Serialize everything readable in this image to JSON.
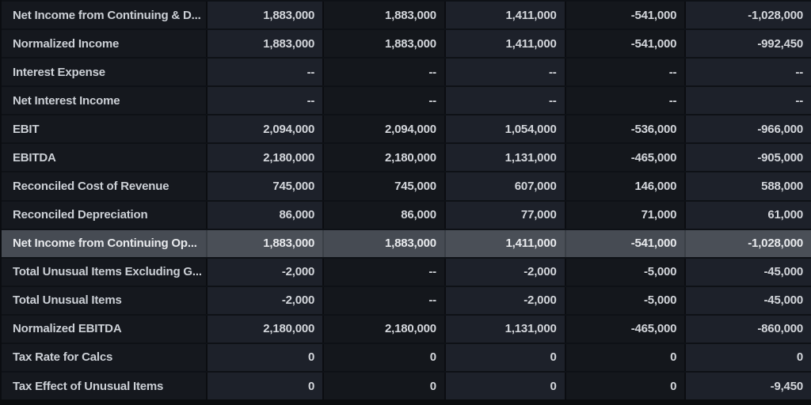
{
  "colors": {
    "row_highlight": "#4a4f57",
    "row_highlight_dark": "#464b53",
    "grid_line": "#0b0d11",
    "text": "#d3d6db"
  },
  "table": {
    "missing_value_symbol": "--",
    "rows": [
      {
        "label": "Net Income from Continuing & D...",
        "values": [
          "1,883,000",
          "1,883,000",
          "1,411,000",
          "-541,000",
          "-1,028,000"
        ],
        "highlighted": false
      },
      {
        "label": "Normalized Income",
        "values": [
          "1,883,000",
          "1,883,000",
          "1,411,000",
          "-541,000",
          "-992,450"
        ],
        "highlighted": false
      },
      {
        "label": "Interest Expense",
        "values": [
          "--",
          "--",
          "--",
          "--",
          "--"
        ],
        "highlighted": false
      },
      {
        "label": "Net Interest Income",
        "values": [
          "--",
          "--",
          "--",
          "--",
          "--"
        ],
        "highlighted": false
      },
      {
        "label": "EBIT",
        "values": [
          "2,094,000",
          "2,094,000",
          "1,054,000",
          "-536,000",
          "-966,000"
        ],
        "highlighted": false
      },
      {
        "label": "EBITDA",
        "values": [
          "2,180,000",
          "2,180,000",
          "1,131,000",
          "-465,000",
          "-905,000"
        ],
        "highlighted": false
      },
      {
        "label": "Reconciled Cost of Revenue",
        "values": [
          "745,000",
          "745,000",
          "607,000",
          "146,000",
          "588,000"
        ],
        "highlighted": false
      },
      {
        "label": "Reconciled Depreciation",
        "values": [
          "86,000",
          "86,000",
          "77,000",
          "71,000",
          "61,000"
        ],
        "highlighted": false
      },
      {
        "label": "Net Income from Continuing Op...",
        "values": [
          "1,883,000",
          "1,883,000",
          "1,411,000",
          "-541,000",
          "-1,028,000"
        ],
        "highlighted": true
      },
      {
        "label": "Total Unusual Items Excluding G...",
        "values": [
          "-2,000",
          "--",
          "-2,000",
          "-5,000",
          "-45,000"
        ],
        "highlighted": false
      },
      {
        "label": "Total Unusual Items",
        "values": [
          "-2,000",
          "--",
          "-2,000",
          "-5,000",
          "-45,000"
        ],
        "highlighted": false
      },
      {
        "label": "Normalized EBITDA",
        "values": [
          "2,180,000",
          "2,180,000",
          "1,131,000",
          "-465,000",
          "-860,000"
        ],
        "highlighted": false
      },
      {
        "label": "Tax Rate for Calcs",
        "values": [
          "0",
          "0",
          "0",
          "0",
          "0"
        ],
        "highlighted": false
      },
      {
        "label": "Tax Effect of Unusual Items",
        "values": [
          "0",
          "0",
          "0",
          "0",
          "-9,450"
        ],
        "highlighted": false
      }
    ]
  }
}
